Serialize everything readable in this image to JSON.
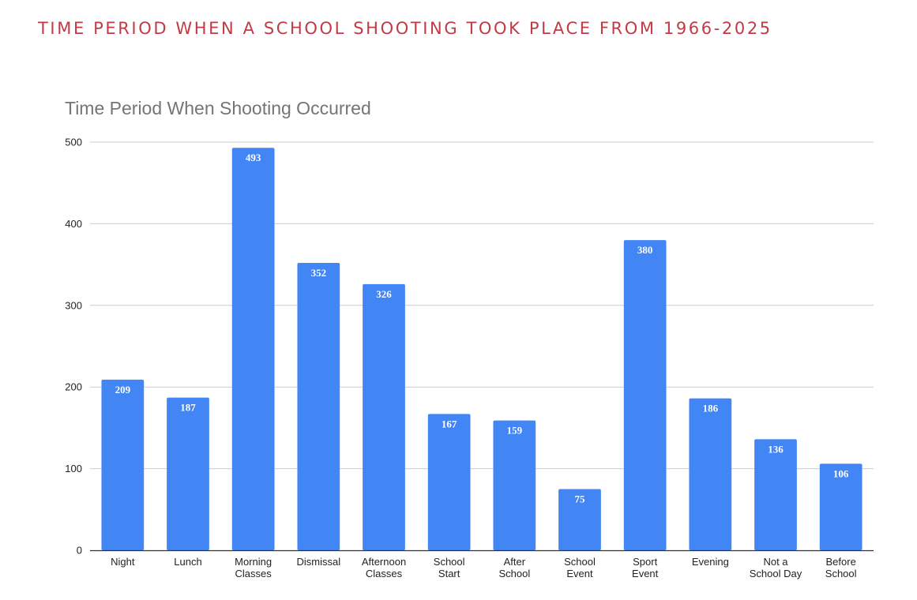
{
  "page": {
    "heading": "TIME PERIOD WHEN A SCHOOL SHOOTING TOOK PLACE FROM 1966-2025"
  },
  "colors": {
    "heading": "#c23a45",
    "bar": "#4285f4",
    "grid": "#cccccc",
    "axis": "#333333"
  },
  "chart_data": {
    "type": "bar",
    "title": "Time Period When Shooting Occurred",
    "xlabel": "",
    "ylabel": "",
    "ylim": [
      0,
      500
    ],
    "yticks": [
      0,
      100,
      200,
      300,
      400,
      500
    ],
    "grid": true,
    "categories": [
      [
        "Night"
      ],
      [
        "Lunch"
      ],
      [
        "Morning",
        "Classes"
      ],
      [
        "Dismissal"
      ],
      [
        "Afternoon",
        "Classes"
      ],
      [
        "School",
        "Start"
      ],
      [
        "After",
        "School"
      ],
      [
        "School",
        "Event"
      ],
      [
        "Sport",
        "Event"
      ],
      [
        "Evening"
      ],
      [
        "Not a",
        "School Day"
      ],
      [
        "Before",
        "School"
      ]
    ],
    "values": [
      209,
      187,
      493,
      352,
      326,
      167,
      159,
      75,
      380,
      186,
      136,
      106
    ]
  }
}
